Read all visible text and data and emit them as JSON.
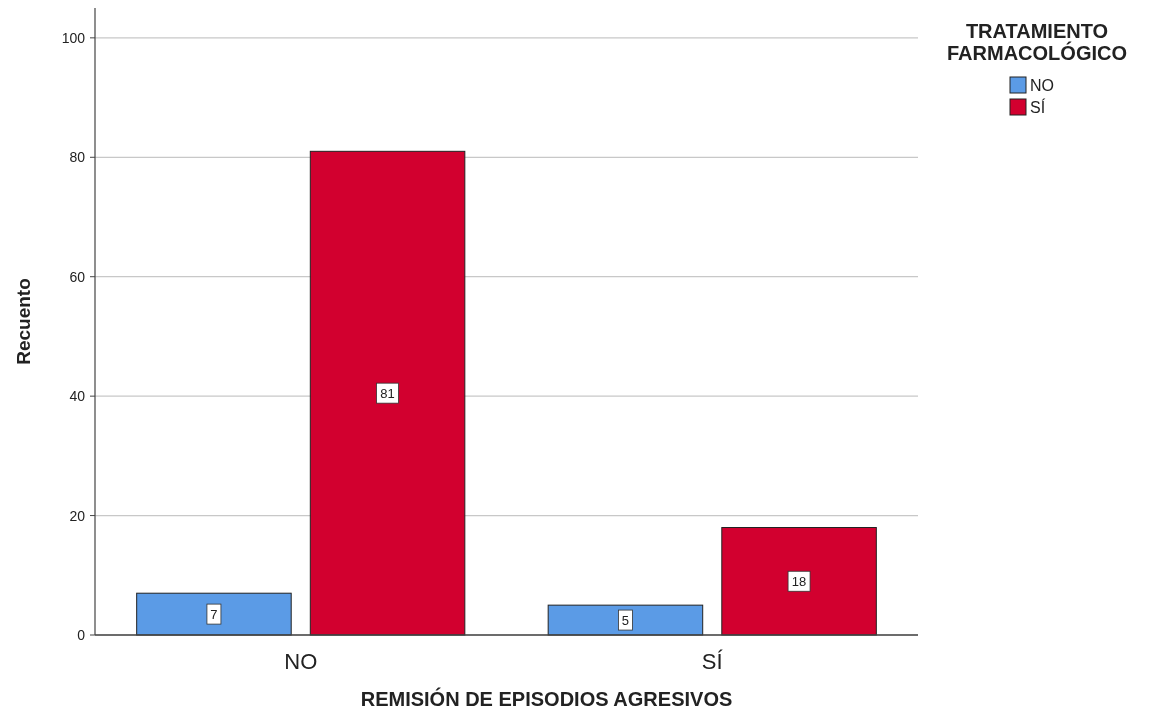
{
  "chart_data": {
    "type": "bar",
    "xlabel": "REMISIÓN DE EPISODIOS AGRESIVOS",
    "ylabel": "Recuento",
    "legend_title": "TRATAMIENTO FARMACOLÓGICO",
    "categories": [
      "NO",
      "SÍ"
    ],
    "series": [
      {
        "name": "NO",
        "color": "#5b9be6",
        "values": [
          7,
          5
        ]
      },
      {
        "name": "SÍ",
        "color": "#d2002f",
        "values": [
          81,
          18
        ]
      }
    ],
    "ylim": [
      0,
      105
    ],
    "yticks": [
      0,
      20,
      40,
      60,
      80,
      100
    ],
    "grid": "y",
    "legend": "top right",
    "data_labels": true
  }
}
